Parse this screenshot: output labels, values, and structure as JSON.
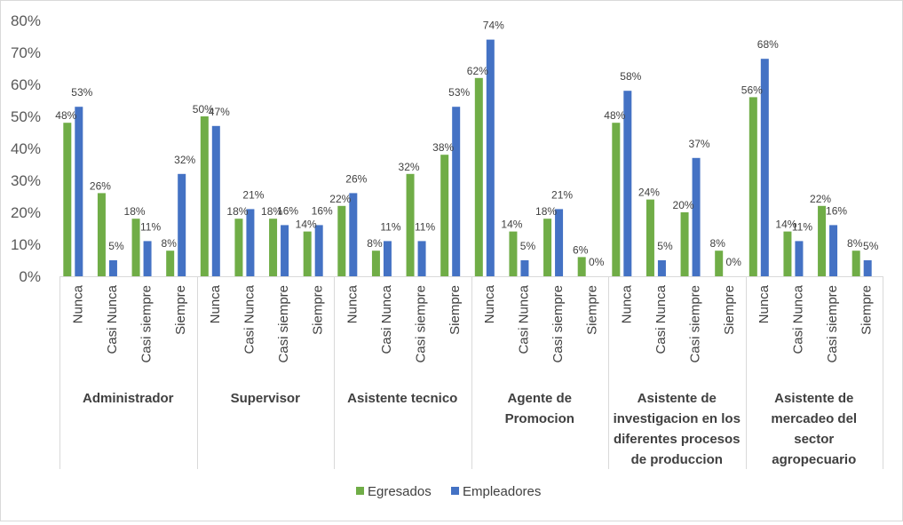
{
  "chart_data": {
    "type": "bar",
    "title": "",
    "xlabel": "",
    "ylabel": "",
    "ylim": [
      0,
      0.8
    ],
    "yticks": [
      0,
      0.1,
      0.2,
      0.3,
      0.4,
      0.5,
      0.6,
      0.7,
      0.8
    ],
    "ytick_labels": [
      "0%",
      "10%",
      "20%",
      "30%",
      "40%",
      "50%",
      "60%",
      "70%",
      "80%"
    ],
    "grid": false,
    "legend_position": "bottom",
    "colors": {
      "Egresados": "#70ad47",
      "Empleadores": "#4472c4"
    },
    "subcategories": [
      "Nunca",
      "Casi Nunca",
      "Casi siempre",
      "Siempre"
    ],
    "groups": [
      {
        "label": [
          "Administrador"
        ]
      },
      {
        "label": [
          "Supervisor"
        ]
      },
      {
        "label": [
          "Asistente tecnico"
        ]
      },
      {
        "label": [
          "Agente de",
          "Promocion"
        ]
      },
      {
        "label": [
          "Asistente de",
          "investigacion en los",
          "diferentes procesos",
          "de produccion"
        ]
      },
      {
        "label": [
          "Asistente de",
          "mercadeo del",
          "sector",
          "agropecuario"
        ]
      }
    ],
    "series": [
      {
        "name": "Egresados",
        "values": [
          0.48,
          0.26,
          0.18,
          0.08,
          0.5,
          0.18,
          0.18,
          0.14,
          0.22,
          0.08,
          0.32,
          0.38,
          0.62,
          0.14,
          0.18,
          0.06,
          0.48,
          0.24,
          0.2,
          0.08,
          0.56,
          0.14,
          0.22,
          0.08
        ],
        "labels": [
          "48%",
          "26%",
          "18%",
          "8%",
          "50%",
          "18%",
          "18%",
          "14%",
          "22%",
          "8%",
          "32%",
          "38%",
          "62%",
          "14%",
          "18%",
          "6%",
          "48%",
          "24%",
          "20%",
          "8%",
          "56%",
          "14%",
          "22%",
          "8%"
        ]
      },
      {
        "name": "Empleadores",
        "values": [
          0.53,
          0.05,
          0.11,
          0.32,
          0.47,
          0.21,
          0.16,
          0.16,
          0.26,
          0.11,
          0.11,
          0.53,
          0.74,
          0.05,
          0.21,
          0.0,
          0.58,
          0.05,
          0.37,
          0.0,
          0.68,
          0.11,
          0.16,
          0.05
        ],
        "labels": [
          "53%",
          "5%",
          "11%",
          "32%",
          "47%",
          "21%",
          "16%",
          "16%",
          "26%",
          "11%",
          "11%",
          "53%",
          "74%",
          "5%",
          "21%",
          "0%",
          "58%",
          "5%",
          "37%",
          "0%",
          "68%",
          "11%",
          "16%",
          "5%"
        ]
      }
    ]
  }
}
